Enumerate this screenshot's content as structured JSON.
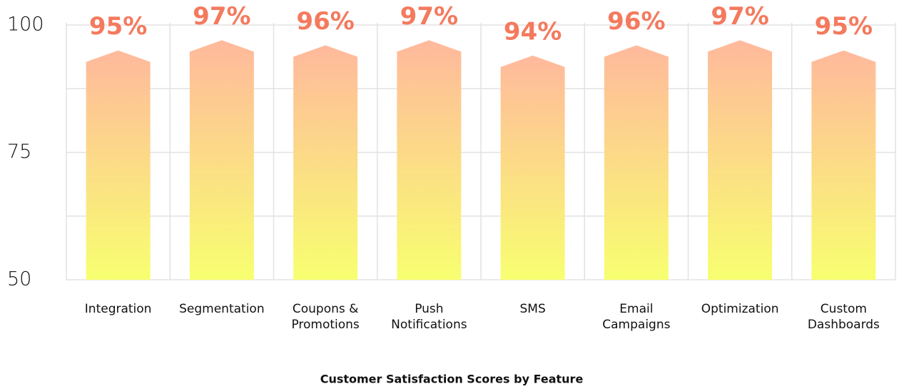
{
  "chart_data": {
    "type": "bar",
    "title": "Customer Satisfaction Scores by Feature",
    "categories": [
      "Integration",
      "Segmentation",
      "Coupons & Promotions",
      "Push Notifications",
      "SMS",
      "Email Campaigns",
      "Optimization",
      "Custom Dashboards"
    ],
    "values": [
      95,
      97,
      96,
      97,
      94,
      96,
      97,
      95
    ],
    "value_labels": [
      "95%",
      "97%",
      "96%",
      "97%",
      "94%",
      "96%",
      "97%",
      "95%"
    ],
    "ylim": [
      50,
      100
    ],
    "yticks": [
      50,
      75,
      100
    ],
    "grid": true,
    "color_top": "#ffb99c",
    "color_bottom": "#f8ff70",
    "label_color": "#f47a5e"
  }
}
